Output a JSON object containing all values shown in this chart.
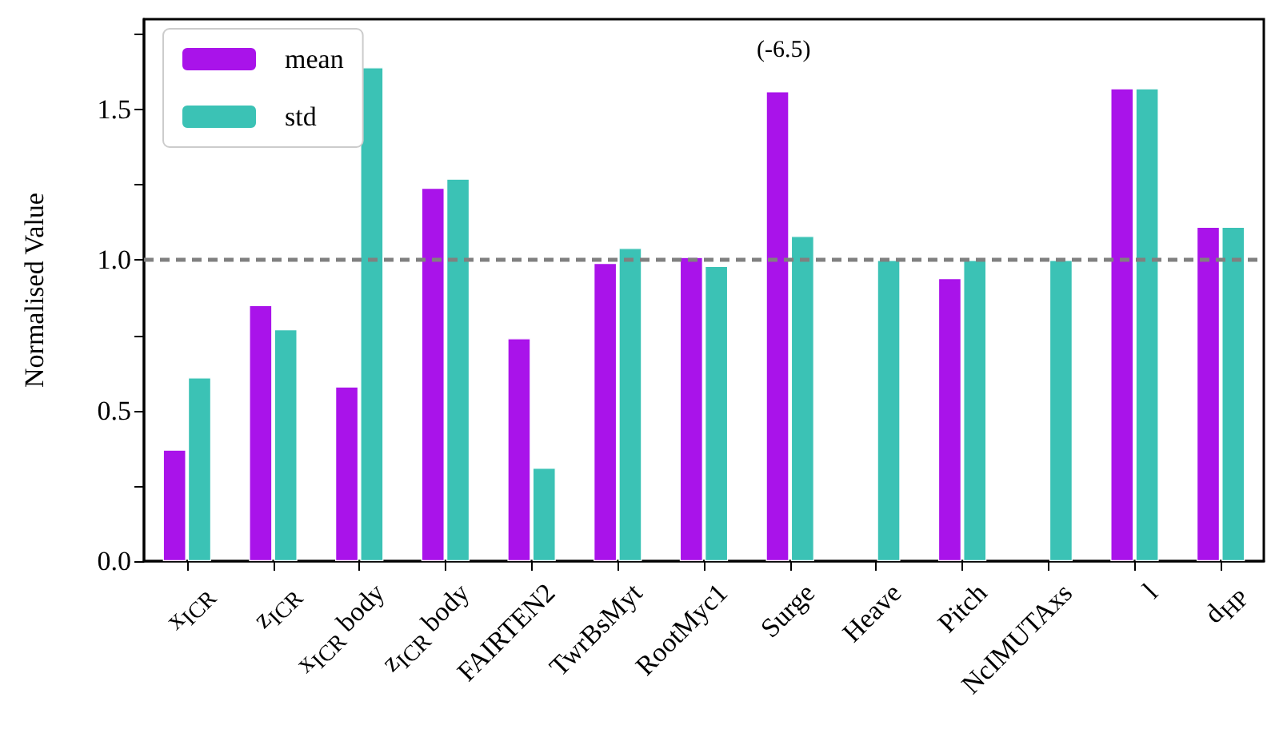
{
  "chart_data": {
    "type": "bar",
    "ylabel": "Normalised Value",
    "categories": [
      "x$_{ICR}$",
      "z$_{ICR}$",
      "x$_{ICR}$ body",
      "z$_{ICR}$ body",
      "FAIRTEN2",
      "TwrBsMyt",
      "RootMyc1",
      "Surge",
      "Heave",
      "Pitch",
      "NcIMUTAxs",
      "l",
      "d$_{HP}$"
    ],
    "series": [
      {
        "name": "mean",
        "color": "#a913ea",
        "values": [
          0.37,
          0.85,
          0.58,
          1.24,
          0.74,
          0.99,
          1.01,
          1.56,
          null,
          0.94,
          null,
          1.57,
          1.11
        ]
      },
      {
        "name": "std",
        "color": "#3bc2b5",
        "values": [
          0.61,
          0.77,
          1.64,
          1.27,
          0.31,
          1.04,
          0.98,
          1.08,
          1.0,
          1.0,
          1.0,
          1.57,
          1.11
        ]
      }
    ],
    "ylim": [
      0,
      1.8
    ],
    "yticks": [
      {
        "value": 0,
        "label": "0.0"
      },
      {
        "value": 0.25,
        "label": null
      },
      0.5,
      {
        "value": 0.75,
        "label": null
      },
      {
        "value": 1,
        "label": "1.0"
      },
      {
        "value": 1.25,
        "label": null
      },
      1.5,
      {
        "value": 1.75,
        "label": null
      }
    ],
    "ref_lines": [
      {
        "axis": "y",
        "value": 1,
        "color": "#808080",
        "line_style": "dashed"
      }
    ],
    "annotations": [
      "(-6.5)"
    ],
    "grid": false,
    "legend": "top left"
  }
}
